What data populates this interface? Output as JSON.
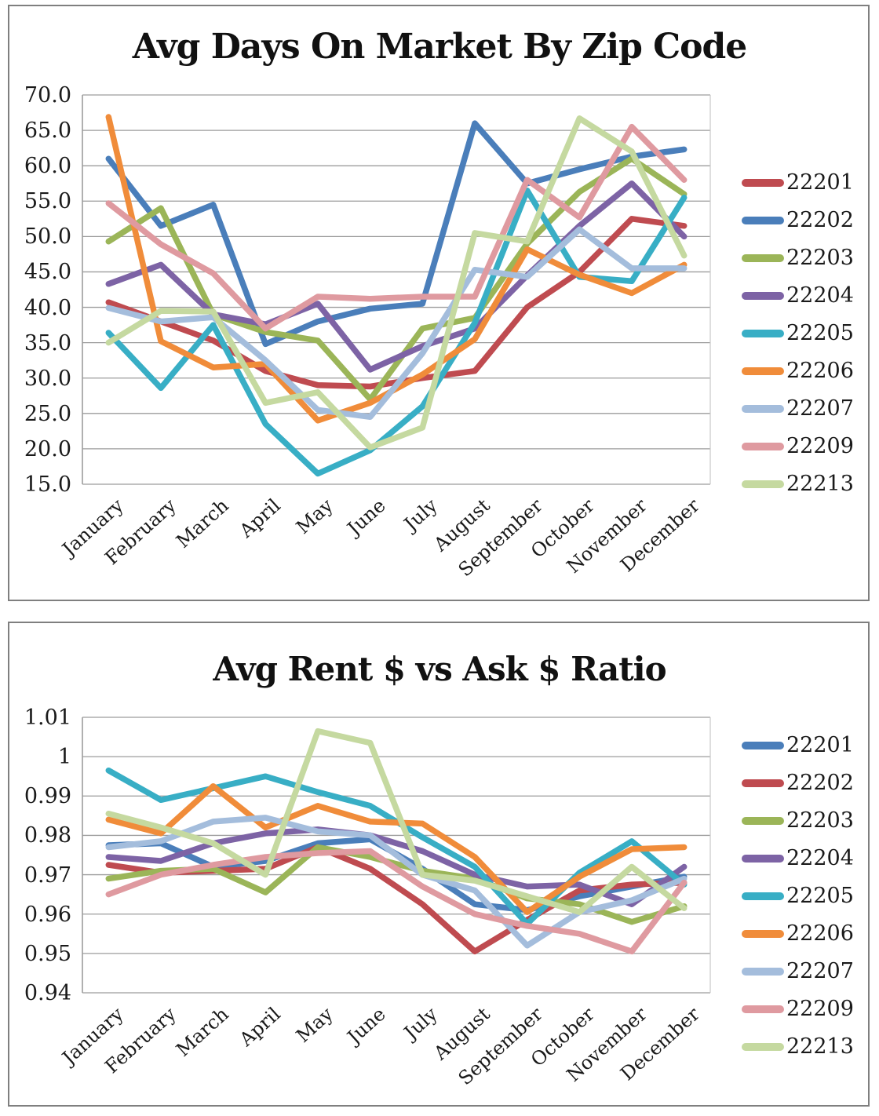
{
  "chart_data": [
    {
      "type": "line",
      "title": "Avg Days On Market By Zip Code",
      "xlabel": "",
      "ylabel": "",
      "ylim": [
        15,
        70
      ],
      "grid": true,
      "legend_position": "right",
      "categories": [
        "January",
        "February",
        "March",
        "April",
        "May",
        "June",
        "July",
        "August",
        "September",
        "October",
        "November",
        "December"
      ],
      "yticks": [
        {
          "value": 70,
          "label": "70.0"
        },
        {
          "value": 65,
          "label": "65.0"
        },
        {
          "value": 60,
          "label": "60.0"
        },
        {
          "value": 55,
          "label": "55.0"
        },
        {
          "value": 50,
          "label": "50.0"
        },
        {
          "value": 45,
          "label": "45.0"
        },
        {
          "value": 40,
          "label": "40.0"
        },
        {
          "value": 35,
          "label": "35.0"
        },
        {
          "value": 30,
          "label": "30.0"
        },
        {
          "value": 25,
          "label": "25.0"
        },
        {
          "value": 20,
          "label": "20.0"
        },
        {
          "value": 15,
          "label": "15.0"
        }
      ],
      "series": [
        {
          "name": "22201",
          "color": "#bf4b50",
          "values": [
            40.7,
            38.0,
            35.3,
            31.0,
            29.0,
            28.8,
            30.0,
            31.0,
            40.0,
            45.0,
            52.5,
            51.5
          ]
        },
        {
          "name": "22202",
          "color": "#4a7eba",
          "values": [
            61.0,
            51.5,
            54.5,
            34.8,
            38.0,
            39.8,
            40.5,
            66.0,
            57.5,
            59.5,
            61.3,
            62.3
          ]
        },
        {
          "name": "22203",
          "color": "#9bb558",
          "values": [
            49.3,
            54.0,
            39.0,
            36.5,
            35.3,
            27.0,
            37.0,
            38.5,
            49.0,
            56.3,
            61.0,
            56.0
          ]
        },
        {
          "name": "22204",
          "color": "#7d63a5",
          "values": [
            43.3,
            46.0,
            39.0,
            37.6,
            40.5,
            31.2,
            34.5,
            37.0,
            44.5,
            51.5,
            57.5,
            50.0
          ]
        },
        {
          "name": "22205",
          "color": "#38aec5",
          "values": [
            36.4,
            28.6,
            37.5,
            23.5,
            16.5,
            19.8,
            26.0,
            37.8,
            56.5,
            44.3,
            43.7,
            55.5
          ]
        },
        {
          "name": "22206",
          "color": "#f08c3a",
          "values": [
            66.9,
            35.2,
            31.5,
            32.0,
            24.0,
            26.5,
            30.5,
            35.5,
            48.2,
            44.6,
            42.0,
            46.0
          ]
        },
        {
          "name": "22207",
          "color": "#a4bddc",
          "values": [
            39.9,
            38.0,
            38.6,
            32.5,
            25.5,
            24.5,
            33.5,
            45.3,
            44.3,
            51.0,
            45.5,
            45.5
          ]
        },
        {
          "name": "22209",
          "color": "#df9aa0",
          "values": [
            54.7,
            48.9,
            44.8,
            37.0,
            41.5,
            41.2,
            41.5,
            41.5,
            58.0,
            52.7,
            65.5,
            58.0
          ]
        },
        {
          "name": "22213",
          "color": "#c5d9a0",
          "values": [
            35.0,
            39.5,
            39.4,
            26.5,
            28.0,
            20.2,
            23.0,
            50.5,
            49.3,
            66.7,
            62.0,
            47.3
          ]
        }
      ]
    },
    {
      "type": "line",
      "title": "Avg Rent $ vs Ask $ Ratio",
      "xlabel": "",
      "ylabel": "",
      "ylim": [
        0.94,
        1.01
      ],
      "grid": true,
      "legend_position": "right",
      "categories": [
        "January",
        "February",
        "March",
        "April",
        "May",
        "June",
        "July",
        "August",
        "September",
        "October",
        "November",
        "December"
      ],
      "yticks": [
        {
          "value": 1.01,
          "label": "1.01"
        },
        {
          "value": 1.0,
          "label": "1"
        },
        {
          "value": 0.99,
          "label": "0.99"
        },
        {
          "value": 0.98,
          "label": "0.98"
        },
        {
          "value": 0.97,
          "label": "0.97"
        },
        {
          "value": 0.96,
          "label": "0.96"
        },
        {
          "value": 0.95,
          "label": "0.95"
        },
        {
          "value": 0.94,
          "label": "0.94"
        }
      ],
      "series": [
        {
          "name": "22201",
          "color": "#4a7eba",
          "values": [
            0.9775,
            0.978,
            0.972,
            0.9735,
            0.978,
            0.979,
            0.9715,
            0.9625,
            0.961,
            0.9645,
            0.967,
            0.9695
          ]
        },
        {
          "name": "22202",
          "color": "#bf4b50",
          "values": [
            0.9725,
            0.9705,
            0.971,
            0.9715,
            0.977,
            0.9715,
            0.9625,
            0.9505,
            0.9585,
            0.966,
            0.9675,
            0.968
          ]
        },
        {
          "name": "22203",
          "color": "#9bb558",
          "values": [
            0.969,
            0.971,
            0.9715,
            0.9655,
            0.977,
            0.9745,
            0.971,
            0.969,
            0.964,
            0.9625,
            0.958,
            0.962
          ]
        },
        {
          "name": "22204",
          "color": "#7d63a5",
          "values": [
            0.9745,
            0.9735,
            0.978,
            0.9805,
            0.9815,
            0.98,
            0.976,
            0.97,
            0.967,
            0.9675,
            0.9625,
            0.972
          ]
        },
        {
          "name": "22205",
          "color": "#38aec5",
          "values": [
            0.9965,
            0.989,
            0.992,
            0.995,
            0.991,
            0.9875,
            0.9795,
            0.972,
            0.9575,
            0.9705,
            0.9785,
            0.9675
          ]
        },
        {
          "name": "22206",
          "color": "#f08c3a",
          "values": [
            0.984,
            0.9805,
            0.9925,
            0.982,
            0.9875,
            0.9835,
            0.983,
            0.9745,
            0.9605,
            0.9695,
            0.9765,
            0.977
          ]
        },
        {
          "name": "22207",
          "color": "#a4bddc",
          "values": [
            0.977,
            0.9785,
            0.9835,
            0.9845,
            0.981,
            0.98,
            0.97,
            0.966,
            0.952,
            0.9605,
            0.9635,
            0.969
          ]
        },
        {
          "name": "22209",
          "color": "#df9aa0",
          "values": [
            0.965,
            0.97,
            0.9725,
            0.9745,
            0.9755,
            0.976,
            0.967,
            0.96,
            0.957,
            0.955,
            0.9505,
            0.968
          ]
        },
        {
          "name": "22213",
          "color": "#c5d9a0",
          "values": [
            0.9855,
            0.982,
            0.978,
            0.97,
            1.0065,
            1.0035,
            0.97,
            0.9685,
            0.9645,
            0.9605,
            0.972,
            0.9615
          ]
        }
      ]
    }
  ]
}
